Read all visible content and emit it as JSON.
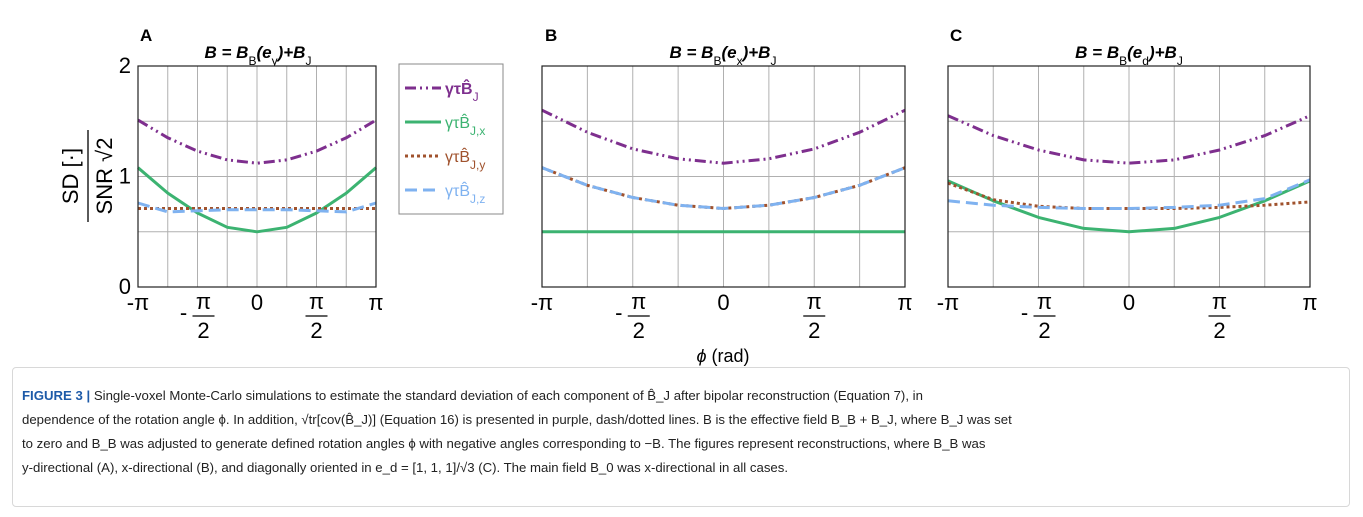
{
  "chart_data": [
    {
      "type": "line",
      "panel_label": "A",
      "title": "B = B_B(e_y)+B_J",
      "ylabel": "SD [·] / SNR √2",
      "xlim": [
        -3.1416,
        3.1416
      ],
      "ylim": [
        0,
        2
      ],
      "x_ticks": [
        "-π",
        "-π/2",
        "0",
        "π/2",
        "π"
      ],
      "y_ticks": [
        "0",
        "1",
        "2"
      ],
      "grid": true,
      "legend_position": "top-right",
      "x": [
        -3.1416,
        -2.3562,
        -1.5708,
        -0.7854,
        0,
        0.7854,
        1.5708,
        2.3562,
        3.1416
      ],
      "series": [
        {
          "name": "γτB̂_J",
          "color": "#7e2f8e",
          "dash": "dashdot",
          "values": [
            1.51,
            1.35,
            1.23,
            1.15,
            1.12,
            1.15,
            1.23,
            1.35,
            1.51
          ]
        },
        {
          "name": "γτB̂_J,x",
          "color": "#3cb371",
          "dash": "solid",
          "values": [
            1.08,
            0.85,
            0.67,
            0.54,
            0.5,
            0.54,
            0.67,
            0.85,
            1.08
          ]
        },
        {
          "name": "γτB̂_J,y",
          "color": "#a0522d",
          "dash": "dotted",
          "values": [
            0.71,
            0.71,
            0.71,
            0.71,
            0.71,
            0.71,
            0.71,
            0.71,
            0.71
          ]
        },
        {
          "name": "γτB̂_J,z",
          "color": "#7fb2f0",
          "dash": "dashed",
          "values": [
            0.76,
            0.68,
            0.69,
            0.7,
            0.7,
            0.7,
            0.69,
            0.68,
            0.76
          ]
        }
      ]
    },
    {
      "type": "line",
      "panel_label": "B",
      "title": "B = B_B(e_x)+B_J",
      "xlim": [
        -3.1416,
        3.1416
      ],
      "ylim": [
        0,
        2
      ],
      "x_ticks": [
        "-π",
        "-π/2",
        "0",
        "π/2",
        "π"
      ],
      "grid": true,
      "x": [
        -3.1416,
        -2.3562,
        -1.5708,
        -0.7854,
        0,
        0.7854,
        1.5708,
        2.3562,
        3.1416
      ],
      "series": [
        {
          "color": "#7e2f8e",
          "dash": "dashdot",
          "values": [
            1.6,
            1.4,
            1.25,
            1.16,
            1.12,
            1.16,
            1.25,
            1.4,
            1.6
          ]
        },
        {
          "color": "#3cb371",
          "dash": "solid",
          "values": [
            0.5,
            0.5,
            0.5,
            0.5,
            0.5,
            0.5,
            0.5,
            0.5,
            0.5
          ]
        },
        {
          "color": "#a0522d",
          "dash": "dotted",
          "values": [
            1.08,
            0.92,
            0.81,
            0.74,
            0.71,
            0.74,
            0.81,
            0.92,
            1.08
          ]
        },
        {
          "color": "#7fb2f0",
          "dash": "dashed",
          "values": [
            1.08,
            0.92,
            0.81,
            0.74,
            0.71,
            0.74,
            0.81,
            0.92,
            1.08
          ]
        }
      ]
    },
    {
      "type": "line",
      "panel_label": "C",
      "title": "B = B_B(e_d)+B_J",
      "xlim": [
        -3.1416,
        3.1416
      ],
      "ylim": [
        0,
        2
      ],
      "x_ticks": [
        "-π",
        "-π/2",
        "0",
        "π/2",
        "π"
      ],
      "grid": true,
      "x": [
        -3.1416,
        -2.3562,
        -1.5708,
        -0.7854,
        0,
        0.7854,
        1.5708,
        2.3562,
        3.1416
      ],
      "series": [
        {
          "color": "#7e2f8e",
          "dash": "dashdot",
          "values": [
            1.55,
            1.37,
            1.24,
            1.15,
            1.12,
            1.15,
            1.24,
            1.37,
            1.55
          ]
        },
        {
          "color": "#3cb371",
          "dash": "solid",
          "values": [
            0.96,
            0.78,
            0.63,
            0.53,
            0.5,
            0.53,
            0.63,
            0.78,
            0.96
          ]
        },
        {
          "color": "#a0522d",
          "dash": "dotted",
          "values": [
            0.94,
            0.79,
            0.73,
            0.71,
            0.71,
            0.71,
            0.72,
            0.74,
            0.77
          ]
        },
        {
          "color": "#7fb2f0",
          "dash": "dashed",
          "values": [
            0.78,
            0.74,
            0.72,
            0.71,
            0.71,
            0.72,
            0.74,
            0.8,
            0.97
          ]
        }
      ]
    }
  ],
  "shared_xlabel": "ϕ (rad)",
  "caption": {
    "label": "FIGURE 3 |",
    "line1": "Single-voxel Monte-Carlo simulations to estimate the standard deviation of each component of B̂_J after bipolar reconstruction (Equation 7), in",
    "line2": "dependence of the rotation angle ϕ. In addition, √tr[cov(B̂_J)] (Equation 16) is presented in purple, dash/dotted lines. B is the effective field B_B + B_J, where B_J was set",
    "line3": "to zero and B_B was adjusted to generate defined rotation angles ϕ with negative angles corresponding to −B. The figures represent reconstructions, where B_B was",
    "line4": "y-directional (A), x-directional (B), and diagonally oriented in e_d = [1, 1, 1]/√3 (C). The main field B_0 was x-directional in all cases."
  }
}
